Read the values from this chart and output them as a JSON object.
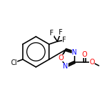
{
  "background_color": "#ffffff",
  "bond_color": "#000000",
  "heteroatom_colors": {
    "N": "#0000ff",
    "O": "#ff0000",
    "F": "#000000",
    "Cl": "#000000"
  },
  "line_width": 1.2,
  "font_size": 7,
  "fig_size": [
    1.52,
    1.52
  ],
  "dpi": 100
}
